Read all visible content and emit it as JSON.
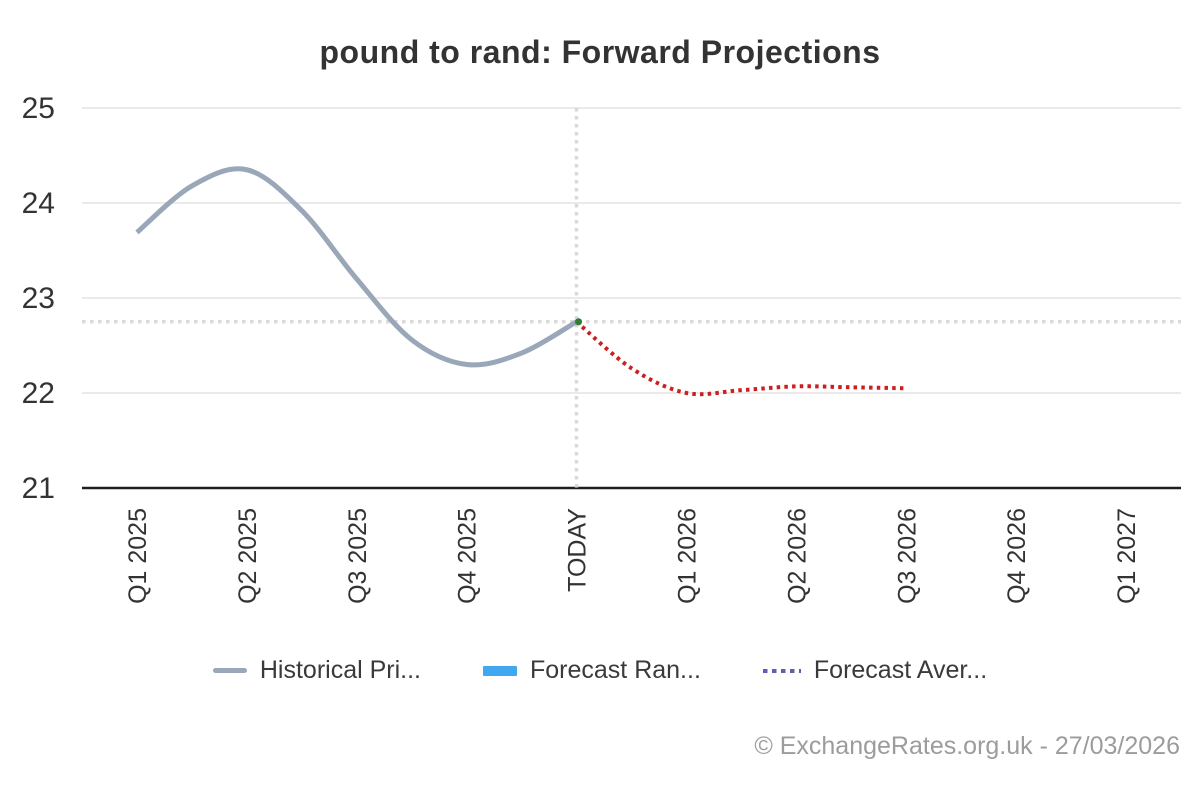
{
  "title": "pound to rand: Forward Projections",
  "footer": {
    "copyright": "© ExchangeRates.org.uk - 27/03/2026"
  },
  "colors": {
    "historical_line": "#9aa7b8",
    "forecast_dotted_line": "#cc2020",
    "forecast_range_swatch": "#41a7f0",
    "forecast_average_swatch": "#5d5fb5",
    "endpoint_marker": "#2e7d32",
    "gridline": "#e3e3e3",
    "reference_dotted": "#d9d9d9",
    "axis_line": "#1f1f1f",
    "tick_text": "#333333"
  },
  "legend": {
    "position": "bottom",
    "items": [
      {
        "label": "Historical Pri...",
        "swatch": "line",
        "color": "#9aa7b8"
      },
      {
        "label": "Forecast Ran...",
        "swatch": "rect",
        "color": "#41a7f0"
      },
      {
        "label": "Forecast Aver...",
        "swatch": "dotted",
        "color": "#5d5fb5"
      }
    ]
  },
  "chart_data": {
    "type": "line",
    "title": "pound to rand: Forward Projections",
    "xlabel": "",
    "ylabel": "",
    "grid": true,
    "ylim": [
      21,
      25
    ],
    "yticks": [
      21,
      22,
      23,
      24,
      25
    ],
    "categories": [
      "Q1 2025",
      "Q2 2025",
      "Q3 2025",
      "Q4 2025",
      "TODAY",
      "Q1 2026",
      "Q2 2026",
      "Q3 2026",
      "Q4 2026",
      "Q1 2027"
    ],
    "today_index": 4,
    "today_rate": 22.75,
    "reference_lines": {
      "horizontal_value": 22.75,
      "vertical_category": "TODAY"
    },
    "series": [
      {
        "name": "Historical Price",
        "style": "solid",
        "color": "#9aa7b8",
        "x": [
          0,
          0.5,
          1,
          1.5,
          2,
          2.5,
          3,
          3.5,
          4
        ],
        "values": [
          23.69,
          24.18,
          24.35,
          23.92,
          23.2,
          22.56,
          22.3,
          22.42,
          22.75
        ]
      },
      {
        "name": "Forecast Range",
        "style": "area",
        "color": "#41a7f0",
        "x": [],
        "values": []
      },
      {
        "name": "Forecast Average",
        "style": "dotted",
        "color": "#cc2020",
        "x": [
          4,
          4.5,
          5,
          5.5,
          6,
          6.5,
          7
        ],
        "values": [
          22.75,
          22.26,
          22.0,
          22.03,
          22.07,
          22.06,
          22.05
        ]
      }
    ]
  }
}
